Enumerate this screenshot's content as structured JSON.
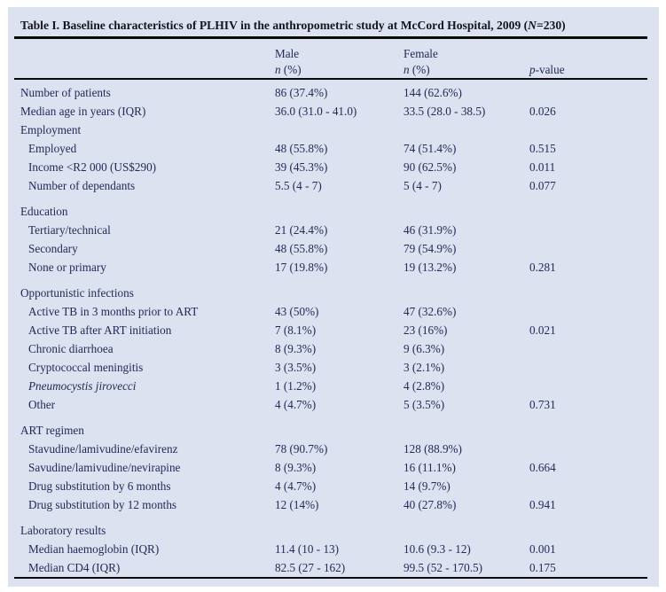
{
  "title": {
    "part1": "Table I. Baseline characteristics of PLHIV in the anthropometric study at McCord Hospital, 2009 (",
    "n_italic": "N",
    "part2": "=230)"
  },
  "header": {
    "male": {
      "label": "Male",
      "sub_italic": "n",
      "sub_rest": " (%)"
    },
    "female": {
      "label": "Female",
      "sub_italic": "n",
      "sub_rest": " (%)"
    },
    "pvalue": {
      "italic": "p",
      "rest": "-value"
    }
  },
  "rows": [
    {
      "label": "Number of patients",
      "male": "86 (37.4%)",
      "female": "144 (62.6%)",
      "p": "",
      "section": false,
      "indent": false,
      "italic": false,
      "gap": false
    },
    {
      "label": "Median age in years (IQR)",
      "male": "36.0 (31.0 - 41.0)",
      "female": "33.5 (28.0 - 38.5)",
      "p": "0.026",
      "section": false,
      "indent": false,
      "italic": false,
      "gap": false
    },
    {
      "label": "Employment",
      "male": "",
      "female": "",
      "p": "",
      "section": true,
      "indent": false,
      "italic": false,
      "gap": false
    },
    {
      "label": "Employed",
      "male": "48 (55.8%)",
      "female": "74 (51.4%)",
      "p": "0.515",
      "section": false,
      "indent": true,
      "italic": false,
      "gap": false
    },
    {
      "label": "Income <R2 000 (US$290)",
      "male": "39 (45.3%)",
      "female": "90 (62.5%)",
      "p": "0.011",
      "section": false,
      "indent": true,
      "italic": false,
      "gap": false
    },
    {
      "label": "Number of dependants",
      "male": "5.5 (4 - 7)",
      "female": "5 (4 - 7)",
      "p": "0.077",
      "section": false,
      "indent": true,
      "italic": false,
      "gap": false
    },
    {
      "label": "Education",
      "male": "",
      "female": "",
      "p": "",
      "section": true,
      "indent": false,
      "italic": false,
      "gap": true
    },
    {
      "label": "Tertiary/technical",
      "male": "21 (24.4%)",
      "female": "46 (31.9%)",
      "p": "",
      "section": false,
      "indent": true,
      "italic": false,
      "gap": false
    },
    {
      "label": "Secondary",
      "male": "48 (55.8%)",
      "female": "79 (54.9%)",
      "p": "",
      "section": false,
      "indent": true,
      "italic": false,
      "gap": false
    },
    {
      "label": "None or primary",
      "male": "17 (19.8%)",
      "female": "19 (13.2%)",
      "p": "0.281",
      "section": false,
      "indent": true,
      "italic": false,
      "gap": false
    },
    {
      "label": "Opportunistic infections",
      "male": "",
      "female": "",
      "p": "",
      "section": true,
      "indent": false,
      "italic": false,
      "gap": true
    },
    {
      "label": "Active TB in 3 months prior to ART",
      "male": "43 (50%)",
      "female": "47 (32.6%)",
      "p": "",
      "section": false,
      "indent": true,
      "italic": false,
      "gap": false
    },
    {
      "label": "Active TB after ART initiation",
      "male": "7 (8.1%)",
      "female": "23 (16%)",
      "p": "0.021",
      "section": false,
      "indent": true,
      "italic": false,
      "gap": false
    },
    {
      "label": "Chronic diarrhoea",
      "male": "8 (9.3%)",
      "female": "9 (6.3%)",
      "p": "",
      "section": false,
      "indent": true,
      "italic": false,
      "gap": false
    },
    {
      "label": "Cryptococcal meningitis",
      "male": "3 (3.5%)",
      "female": "3 (2.1%)",
      "p": "",
      "section": false,
      "indent": true,
      "italic": false,
      "gap": false
    },
    {
      "label": "Pneumocystis jirovecci",
      "male": "1 (1.2%)",
      "female": "4 (2.8%)",
      "p": "",
      "section": false,
      "indent": true,
      "italic": true,
      "gap": false
    },
    {
      "label": "Other",
      "male": "4 (4.7%)",
      "female": "5 (3.5%)",
      "p": "0.731",
      "section": false,
      "indent": true,
      "italic": false,
      "gap": false
    },
    {
      "label": "ART regimen",
      "male": "",
      "female": "",
      "p": "",
      "section": true,
      "indent": false,
      "italic": false,
      "gap": true
    },
    {
      "label": "Stavudine/lamivudine/efavirenz",
      "male": "78 (90.7%)",
      "female": "128 (88.9%)",
      "p": "",
      "section": false,
      "indent": true,
      "italic": false,
      "gap": false
    },
    {
      "label": "Savudine/lamivudine/nevirapine",
      "male": "8 (9.3%)",
      "female": "16 (11.1%)",
      "p": "0.664",
      "section": false,
      "indent": true,
      "italic": false,
      "gap": false
    },
    {
      "label": "Drug substitution by 6 months",
      "male": "4 (4.7%)",
      "female": "14 (9.7%)",
      "p": "",
      "section": false,
      "indent": true,
      "italic": false,
      "gap": false
    },
    {
      "label": "Drug substitution by 12 months",
      "male": "12 (14%)",
      "female": "40 (27.8%)",
      "p": "0.941",
      "section": false,
      "indent": true,
      "italic": false,
      "gap": false
    },
    {
      "label": "Laboratory results",
      "male": "",
      "female": "",
      "p": "",
      "section": true,
      "indent": false,
      "italic": false,
      "gap": true
    },
    {
      "label": "Median haemoglobin (IQR)",
      "male": "11.4 (10 - 13)",
      "female": "10.6 (9.3 - 12)",
      "p": "0.001",
      "section": false,
      "indent": true,
      "italic": false,
      "gap": false
    },
    {
      "label": "Median CD4 (IQR)",
      "male": "82.5 (27 - 162)",
      "female": "99.5 (52 - 170.5)",
      "p": "0.175",
      "section": false,
      "indent": true,
      "italic": false,
      "gap": false
    }
  ],
  "colors": {
    "page_bg": "#ffffff",
    "panel_bg": "#dce2ef",
    "text": "#232a58",
    "title_text": "#15161f",
    "rule": "#0a0a0a"
  }
}
